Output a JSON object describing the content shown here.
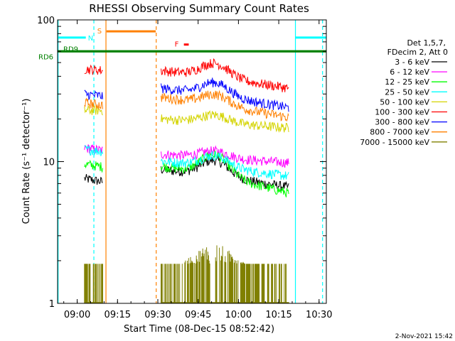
{
  "chart_data": {
    "type": "line",
    "title": "RHESSI Observing Summary Count Rates",
    "xlabel": "Start Time (08-Dec-15 08:52:42)",
    "ylabel": "Count Rate (s⁻¹ detector⁻¹)",
    "y_scale": "log",
    "ylim": [
      1,
      100
    ],
    "y_ticks": [
      "1",
      "10",
      "100"
    ],
    "xlim_minutes": [
      0,
      100
    ],
    "x_ticks": [
      {
        "label": "09:00",
        "t": 7.3
      },
      {
        "label": "09:15",
        "t": 22.3
      },
      {
        "label": "09:30",
        "t": 37.3
      },
      {
        "label": "09:45",
        "t": 52.3
      },
      {
        "label": "10:00",
        "t": 67.3
      },
      {
        "label": "10:15",
        "t": 82.3
      },
      {
        "label": "10:30",
        "t": 97.3
      }
    ],
    "legend_header": [
      "Det 1,5,7,",
      "FDecim 2, Att 0"
    ],
    "legend_placement": "right",
    "series": [
      {
        "name": "3 - 6 keV",
        "color": "#000000",
        "segments": [
          {
            "t": [
              10.0,
              16.8
            ],
            "y": [
              7.6,
              7.2
            ]
          },
          {
            "t": [
              38.5,
              86.0
            ],
            "y": [
              8.8,
              6.6
            ]
          }
        ],
        "peak": {
          "t": 58.0,
          "y": 10.8
        }
      },
      {
        "name": "6 - 12 keV",
        "color": "#ff00ff",
        "segments": [
          {
            "t": [
              10.0,
              16.8
            ],
            "y": [
              12.5,
              12.0
            ]
          },
          {
            "t": [
              38.5,
              86.0
            ],
            "y": [
              11.3,
              9.8
            ]
          }
        ],
        "peak": {
          "t": 58.0,
          "y": 12.2
        }
      },
      {
        "name": "12 - 25 keV",
        "color": "#00ff00",
        "segments": [
          {
            "t": [
              10.0,
              16.8
            ],
            "y": [
              9.6,
              9.2
            ]
          },
          {
            "t": [
              38.5,
              86.0
            ],
            "y": [
              9.3,
              6.0
            ]
          }
        ],
        "peak": {
          "t": 58.0,
          "y": 12.0
        }
      },
      {
        "name": "25 - 50 keV",
        "color": "#00ffff",
        "segments": [
          {
            "t": [
              10.0,
              16.8
            ],
            "y": [
              12.2,
              11.8
            ]
          },
          {
            "t": [
              38.5,
              86.0
            ],
            "y": [
              10.1,
              7.9
            ]
          }
        ],
        "peak": {
          "t": 58.0,
          "y": 11.5
        }
      },
      {
        "name": "50 - 100 keV",
        "color": "#d4d400",
        "segments": [
          {
            "t": [
              10.0,
              16.8
            ],
            "y": [
              23.0,
              23.0
            ]
          },
          {
            "t": [
              38.5,
              86.0
            ],
            "y": [
              20.0,
              17.3
            ]
          }
        ],
        "peak": {
          "t": 58.0,
          "y": 22.0
        }
      },
      {
        "name": "100 - 300 keV",
        "color": "#ff0000",
        "segments": [
          {
            "t": [
              10.0,
              16.8
            ],
            "y": [
              45.0,
              44.0
            ]
          },
          {
            "t": [
              38.5,
              86.0
            ],
            "y": [
              44.0,
              33.0
            ]
          }
        ],
        "peak": {
          "t": 58.0,
          "y": 52.0
        }
      },
      {
        "name": "300 - 800 keV",
        "color": "#0000ff",
        "segments": [
          {
            "t": [
              10.0,
              16.8
            ],
            "y": [
              30.0,
              29.0
            ]
          },
          {
            "t": [
              38.5,
              86.0
            ],
            "y": [
              33.0,
              24.0
            ]
          }
        ],
        "peak": {
          "t": 58.0,
          "y": 38.0
        }
      },
      {
        "name": "800 - 7000 keV",
        "color": "#ff8000",
        "segments": [
          {
            "t": [
              10.0,
              16.8
            ],
            "y": [
              26.0,
              25.0
            ]
          },
          {
            "t": [
              38.5,
              86.0
            ],
            "y": [
              28.5,
              20.5
            ]
          }
        ],
        "peak": {
          "t": 58.0,
          "y": 31.0
        }
      },
      {
        "name": "7000 - 15000 keV",
        "color": "#808000",
        "segments": [
          {
            "t": [
              10.0,
              16.8
            ],
            "y": [
              1.9,
              1.9
            ]
          },
          {
            "t": [
              38.5,
              86.0
            ],
            "y": [
              1.9,
              1.9
            ]
          }
        ],
        "peak": {
          "t": 58.0,
          "y": 2.8
        }
      }
    ],
    "flag_bars": [
      {
        "label": "RD6",
        "color": "#008000",
        "t": [
          0,
          100
        ],
        "y": 60.0,
        "label_side": "left"
      },
      {
        "label": "RD9",
        "color": "#008000",
        "t": [
          0,
          100
        ],
        "y": 60.0,
        "label_side": "inside"
      },
      {
        "label": "N",
        "color": "#00ffff",
        "t": [
          0,
          10.5
        ],
        "y": 75.0,
        "label_side": "end"
      },
      {
        "label": "N",
        "color": "#00ffff",
        "t": [
          88.5,
          100
        ],
        "y": 75.0,
        "label_side": "none"
      },
      {
        "label": "S",
        "color": "#ff8000",
        "t": [
          18.2,
          36.5
        ],
        "y": 83.0,
        "label_side": "start"
      },
      {
        "label": "F",
        "color": "#ff0000",
        "t": [
          47.0,
          48.8
        ],
        "y": 67.0,
        "label_side": "start"
      }
    ],
    "vertical_markers": [
      {
        "t": 0.2,
        "color": "#00ffff",
        "style": "solid"
      },
      {
        "t": 13.5,
        "color": "#00ffff",
        "style": "dashed"
      },
      {
        "t": 18.0,
        "color": "#ff8000",
        "style": "solid"
      },
      {
        "t": 36.7,
        "color": "#ff8000",
        "style": "dashed"
      },
      {
        "t": 88.5,
        "color": "#00ffff",
        "style": "solid"
      },
      {
        "t": 98.6,
        "color": "#00ffff",
        "style": "dashed"
      }
    ],
    "grid": false
  },
  "timestamp": "2-Nov-2021 15:42"
}
